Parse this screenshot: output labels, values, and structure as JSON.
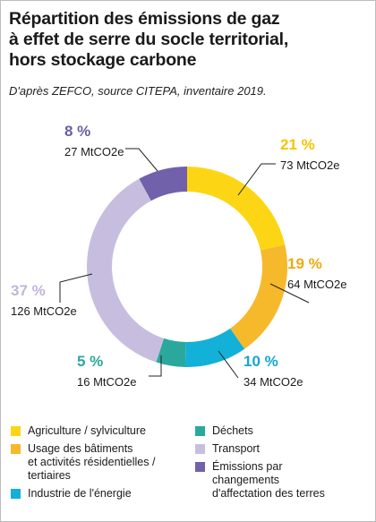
{
  "title": "Répartition des émissions de gaz\nà effet de serre du socle territorial,\nhors stockage carbone",
  "subtitle": "D'après ZEFCO, source CITEPA, inventaire 2019.",
  "chart_data": {
    "type": "pie",
    "donut": true,
    "title": "Répartition des émissions de gaz à effet de serre du socle territorial, hors stockage carbone",
    "unit": "MtCO2e",
    "legend_position": "bottom",
    "slices": [
      {
        "name": "Agriculture / sylviculture",
        "percent_label": "21 %",
        "value": 73,
        "value_label": "73 MtCO2e",
        "color": "#fcd615",
        "label_color": "#f3c500"
      },
      {
        "name": "Usage des bâtiments et activités résidentielles / tertiaires",
        "percent_label": "19 %",
        "value": 64,
        "value_label": "64 MtCO2e",
        "color": "#f6b92b",
        "label_color": "#eeaa10"
      },
      {
        "name": "Industrie de l'énergie",
        "percent_label": "10 %",
        "value": 34,
        "value_label": "34 MtCO2e",
        "color": "#13b0d8",
        "label_color": "#12a8d0"
      },
      {
        "name": "Déchets",
        "percent_label": "5 %",
        "value": 16,
        "value_label": "16 MtCO2e",
        "color": "#2ba89c",
        "label_color": "#2ba89c"
      },
      {
        "name": "Transport",
        "percent_label": "37 %",
        "value": 126,
        "value_label": "126 MtCO2e",
        "color": "#c7bedf",
        "label_color": "#c0b6da"
      },
      {
        "name": "Émissions par changements d'affectation des terres",
        "percent_label": "8 %",
        "value": 27,
        "value_label": "27 MtCO2e",
        "color": "#7161aa",
        "label_color": "#6c5ca6"
      }
    ]
  },
  "legend": [
    {
      "label": "Agriculture / sylviculture",
      "color": "#fcd615"
    },
    {
      "label": "Usage des bâtiments\net activités résidentielles /\ntertiaires",
      "color": "#f6b92b"
    },
    {
      "label": "Industrie de l'énergie",
      "color": "#13b0d8"
    },
    {
      "label": "Déchets",
      "color": "#2ba89c"
    },
    {
      "label": "Transport",
      "color": "#c7bedf"
    },
    {
      "label": "Émissions par\nchangements\nd'affectation des terres",
      "color": "#7161aa"
    }
  ]
}
